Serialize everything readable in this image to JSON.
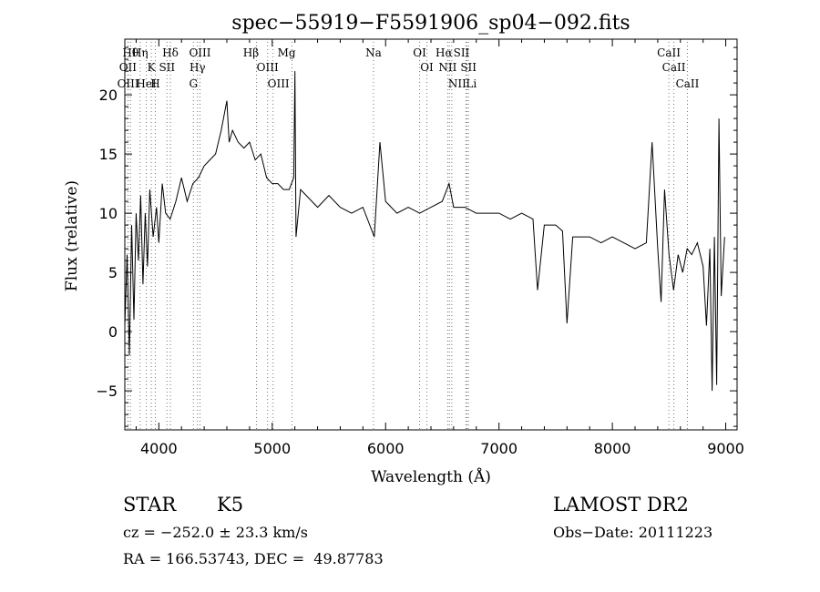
{
  "chart_data": {
    "type": "line",
    "title": "spec−55919−F5591906_sp04−092.fits",
    "xlabel": "Wavelength (Å)",
    "ylabel": "Flux (relative)",
    "xlim": [
      3700,
      9100
    ],
    "ylim": [
      -8.3,
      24.7
    ],
    "x_ticks": [
      4000,
      5000,
      6000,
      7000,
      8000,
      9000
    ],
    "x_tick_labels": [
      "4000",
      "5000",
      "6000",
      "7000",
      "8000",
      "9000"
    ],
    "y_ticks": [
      -5,
      0,
      5,
      10,
      15,
      20
    ],
    "y_tick_labels": [
      "−5",
      "0",
      "5",
      "10",
      "15",
      "20"
    ],
    "grid": false,
    "series": [
      {
        "x": [
          3700,
          3720,
          3740,
          3760,
          3780,
          3800,
          3820,
          3840,
          3860,
          3880,
          3900,
          3920,
          3950,
          3980,
          4000,
          4030,
          4060,
          4100,
          4150,
          4200,
          4250,
          4300,
          4350,
          4400,
          4450,
          4500,
          4550,
          4600,
          4620,
          4650,
          4700,
          4750,
          4800,
          4850,
          4900,
          4950,
          5000,
          5050,
          5100,
          5150,
          5190,
          5200,
          5210,
          5250,
          5300,
          5400,
          5500,
          5600,
          5700,
          5800,
          5900,
          5950,
          6000,
          6100,
          6200,
          6300,
          6400,
          6500,
          6560,
          6600,
          6700,
          6800,
          6900,
          7000,
          7100,
          7200,
          7300,
          7340,
          7400,
          7500,
          7560,
          7600,
          7650,
          7700,
          7800,
          7900,
          8000,
          8100,
          8200,
          8300,
          8350,
          8400,
          8430,
          8460,
          8500,
          8540,
          8580,
          8620,
          8660,
          8700,
          8750,
          8800,
          8830,
          8860,
          8880,
          8900,
          8920,
          8940,
          8960,
          8990
        ],
        "y": [
          0.5,
          6.5,
          -2.0,
          9.0,
          1.0,
          10.0,
          6.0,
          11.5,
          4.0,
          10.0,
          5.5,
          12.0,
          8.0,
          10.5,
          7.5,
          12.5,
          10.0,
          9.5,
          11.0,
          13.0,
          11.0,
          12.5,
          13.0,
          14.0,
          14.5,
          15.0,
          17.0,
          19.5,
          16.0,
          17.0,
          16.0,
          15.5,
          16.0,
          14.5,
          15.0,
          13.0,
          12.5,
          12.5,
          12.0,
          12.0,
          13.0,
          22.0,
          8.0,
          12.0,
          11.5,
          10.5,
          11.5,
          10.5,
          10.0,
          10.5,
          8.0,
          16.0,
          11.0,
          10.0,
          10.5,
          10.0,
          10.5,
          11.0,
          12.5,
          10.5,
          10.5,
          10.0,
          10.0,
          10.0,
          9.5,
          10.0,
          9.5,
          3.5,
          9.0,
          9.0,
          8.5,
          0.7,
          8.0,
          8.0,
          8.0,
          7.5,
          8.0,
          7.5,
          7.0,
          7.5,
          16.0,
          7.0,
          2.5,
          12.0,
          6.5,
          3.5,
          6.5,
          5.0,
          7.0,
          6.5,
          7.5,
          5.5,
          0.5,
          7.0,
          -5.0,
          8.0,
          -4.5,
          18.0,
          3.0,
          8.0
        ]
      }
    ],
    "line_groups": [
      {
        "labels": [
          "Hθ",
          "OII",
          "OIII"
        ],
        "x": [
          3750,
          3727,
          3729
        ]
      },
      {
        "labels": [
          "Hη",
          "K",
          "HeI"
        ],
        "x": [
          3835,
          3934,
          3889
        ]
      },
      {
        "labels": [
          "Hδ",
          "SII",
          "H"
        ],
        "x": [
          4102,
          4072,
          3969
        ]
      },
      {
        "labels": [
          "OIII",
          "Hγ",
          "G"
        ],
        "x": [
          4363,
          4341,
          4305
        ]
      },
      {
        "labels": [
          "Hβ",
          "OIII",
          "OIII",
          "Mg"
        ],
        "x": [
          4861,
          4959,
          5007,
          5175
        ]
      },
      {
        "labels": [
          "Na"
        ],
        "x": [
          5893
        ]
      },
      {
        "labels": [
          "OI",
          "OI"
        ],
        "x": [
          6300,
          6364
        ]
      },
      {
        "labels": [
          "Hα",
          "NII",
          "NII",
          "SII",
          "SII",
          "Li"
        ],
        "x": [
          6563,
          6548,
          6584,
          6717,
          6731,
          6708
        ]
      },
      {
        "labels": [
          "CaII",
          "CaII",
          "CaII"
        ],
        "x": [
          8498,
          8542,
          8662
        ]
      }
    ]
  },
  "info": {
    "object_class": "STAR",
    "subclass": "K5",
    "survey": "LAMOST DR2",
    "redshift": "cz = −252.0 ± 23.3 km/s",
    "obs_date": "Obs−Date: 20111223",
    "coords": "RA = 166.53743, DEC =  49.87783"
  }
}
